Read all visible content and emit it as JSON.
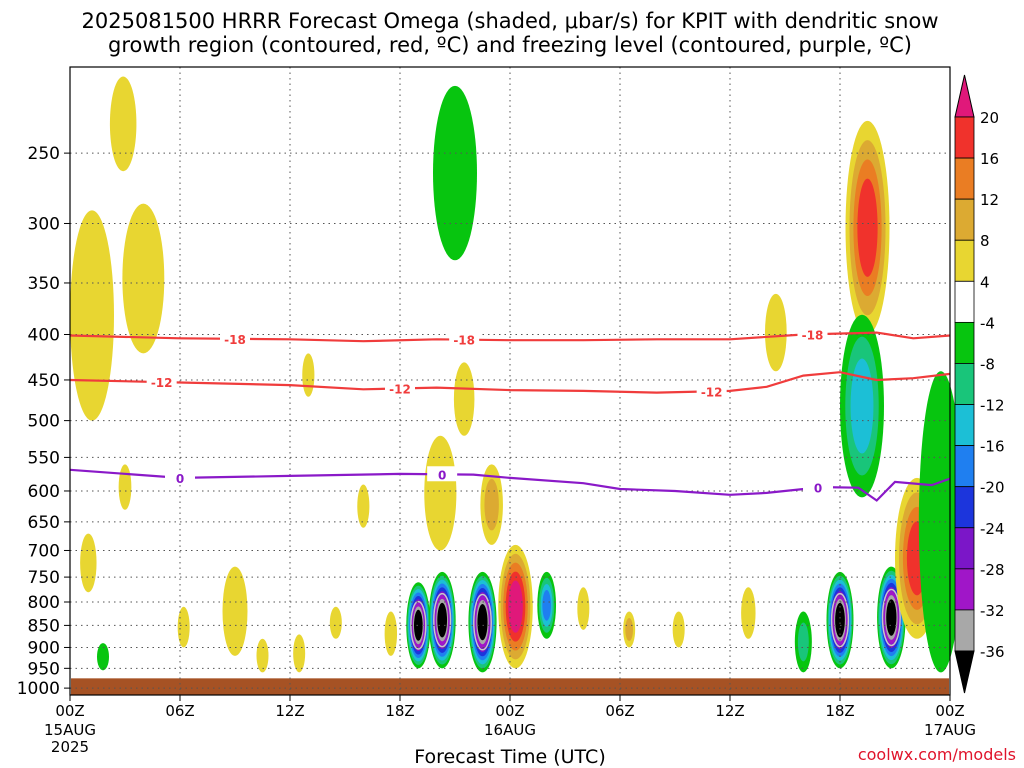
{
  "chart_data": {
    "type": "heatmap",
    "title": "2025081500 HRRR Forecast Omega (shaded, μbar/s) for KPIT with dendritic snow",
    "subtitle": "growth region (contoured, red, ºC) and freezing level (contoured, purple, ºC)",
    "xlabel": "Forecast Time (UTC)",
    "credit": "coolwx.com/models",
    "x_ticks": [
      "00Z",
      "06Z",
      "12Z",
      "18Z",
      "00Z",
      "06Z",
      "12Z",
      "18Z",
      "00Z"
    ],
    "x_hours": [
      0,
      6,
      12,
      18,
      24,
      30,
      36,
      42,
      48
    ],
    "x_date_labels": [
      {
        "hour": 0,
        "lines": [
          "15AUG",
          "2025"
        ]
      },
      {
        "hour": 24,
        "lines": [
          "16AUG"
        ]
      },
      {
        "hour": 48,
        "lines": [
          "17AUG"
        ]
      }
    ],
    "y_ticks": [
      250,
      300,
      350,
      400,
      450,
      500,
      550,
      600,
      650,
      700,
      750,
      800,
      850,
      900,
      950,
      1000
    ],
    "ylim": [
      200,
      1000
    ],
    "y_scale": "log-pressure (inverted)",
    "grid": true,
    "colorbar": {
      "levels": [
        20,
        16,
        12,
        8,
        4,
        -4,
        -8,
        -12,
        -16,
        -20,
        -24,
        -28,
        -32,
        -36
      ],
      "colors": [
        "#e0187a",
        "#f0322c",
        "#ea7d23",
        "#dcaa32",
        "#e8d631",
        "#ffffff",
        "#07c50f",
        "#19c57a",
        "#1cbfd6",
        "#1f7ff0",
        "#1c35dc",
        "#7b16c8",
        "#a016c8",
        "#a8a8a8",
        "#000000"
      ]
    },
    "contours": [
      {
        "name": "dgz_-18",
        "label": "-18",
        "color": "#f03c3c",
        "points": [
          [
            0,
            401
          ],
          [
            6,
            404
          ],
          [
            12,
            405
          ],
          [
            16,
            407
          ],
          [
            20,
            405
          ],
          [
            24,
            406
          ],
          [
            28,
            406
          ],
          [
            32,
            405
          ],
          [
            36,
            405
          ],
          [
            40,
            400
          ],
          [
            44,
            398
          ],
          [
            46,
            404
          ],
          [
            48,
            401
          ]
        ],
        "label_hours": [
          9,
          21.5,
          40.5
        ]
      },
      {
        "name": "dgz_-12",
        "label": "-12",
        "color": "#f03c3c",
        "points": [
          [
            0,
            450
          ],
          [
            6,
            453
          ],
          [
            12,
            456
          ],
          [
            16,
            461
          ],
          [
            20,
            459
          ],
          [
            24,
            462
          ],
          [
            28,
            463
          ],
          [
            32,
            465
          ],
          [
            36,
            463
          ],
          [
            38,
            458
          ],
          [
            40,
            445
          ],
          [
            42,
            441
          ],
          [
            44,
            450
          ],
          [
            46,
            448
          ],
          [
            48,
            443
          ]
        ],
        "label_hours": [
          5,
          18,
          35
        ]
      },
      {
        "name": "freezing_0",
        "label": "0",
        "color": "#8a19c8",
        "points": [
          [
            0,
            568
          ],
          [
            6,
            580
          ],
          [
            12,
            577
          ],
          [
            18,
            574
          ],
          [
            22,
            575
          ],
          [
            24,
            580
          ],
          [
            28,
            588
          ],
          [
            30,
            597
          ],
          [
            33,
            600
          ],
          [
            36,
            606
          ],
          [
            38,
            603
          ],
          [
            41,
            594
          ],
          [
            43,
            595
          ],
          [
            44,
            615
          ],
          [
            45,
            586
          ],
          [
            47,
            591
          ],
          [
            48,
            581
          ]
        ],
        "label_hours": [
          6,
          20.3,
          40.8
        ]
      }
    ],
    "regions": [
      {
        "h": 0.8,
        "p": 1000,
        "hw": 1.0,
        "pw": 0.08,
        "v": 30,
        "note": "terrain"
      }
    ],
    "omega_features": [
      {
        "hour": 2.9,
        "p_min": 205,
        "p_max": 262,
        "value": 6
      },
      {
        "hour": 1.2,
        "p_min": 290,
        "p_max": 500,
        "value": 6
      },
      {
        "hour": 4.0,
        "p_min": 285,
        "p_max": 420,
        "value": 6
      },
      {
        "hour": 3.0,
        "p_min": 560,
        "p_max": 630,
        "value": 6
      },
      {
        "hour": 1.0,
        "p_min": 670,
        "p_max": 780,
        "value": 6
      },
      {
        "hour": 1.8,
        "p_min": 890,
        "p_max": 955,
        "value": -6
      },
      {
        "hour": 6.2,
        "p_min": 810,
        "p_max": 900,
        "value": 6
      },
      {
        "hour": 9.0,
        "p_min": 730,
        "p_max": 920,
        "value": 6
      },
      {
        "hour": 10.5,
        "p_min": 880,
        "p_max": 960,
        "value": 6
      },
      {
        "hour": 13.0,
        "p_min": 420,
        "p_max": 470,
        "value": 6
      },
      {
        "hour": 12.5,
        "p_min": 870,
        "p_max": 960,
        "value": 6
      },
      {
        "hour": 14.5,
        "p_min": 810,
        "p_max": 880,
        "value": 6
      },
      {
        "hour": 16.0,
        "p_min": 590,
        "p_max": 660,
        "value": 6
      },
      {
        "hour": 17.5,
        "p_min": 820,
        "p_max": 920,
        "value": 4
      },
      {
        "hour": 19.0,
        "p_min": 760,
        "p_max": 950,
        "value": -36
      },
      {
        "hour": 20.3,
        "p_min": 740,
        "p_max": 950,
        "value": -36
      },
      {
        "hour": 20.2,
        "p_min": 520,
        "p_max": 700,
        "value": 6
      },
      {
        "hour": 21.0,
        "p_min": 210,
        "p_max": 330,
        "value": -6
      },
      {
        "hour": 21.5,
        "p_min": 430,
        "p_max": 520,
        "value": 6
      },
      {
        "hour": 23.0,
        "p_min": 560,
        "p_max": 690,
        "value": 8
      },
      {
        "hour": 22.5,
        "p_min": 740,
        "p_max": 960,
        "value": -36
      },
      {
        "hour": 24.3,
        "p_min": 690,
        "p_max": 950,
        "value": 20
      },
      {
        "hour": 26.0,
        "p_min": 740,
        "p_max": 880,
        "value": -16
      },
      {
        "hour": 28.0,
        "p_min": 770,
        "p_max": 860,
        "value": 6
      },
      {
        "hour": 30.5,
        "p_min": 820,
        "p_max": 900,
        "value": 10
      },
      {
        "hour": 33.2,
        "p_min": 820,
        "p_max": 900,
        "value": 6
      },
      {
        "hour": 37.0,
        "p_min": 770,
        "p_max": 880,
        "value": 6
      },
      {
        "hour": 38.5,
        "p_min": 360,
        "p_max": 440,
        "value": 6
      },
      {
        "hour": 40.0,
        "p_min": 820,
        "p_max": 960,
        "value": -8
      },
      {
        "hour": 42.0,
        "p_min": 740,
        "p_max": 950,
        "value": -36
      },
      {
        "hour": 43.5,
        "p_min": 230,
        "p_max": 400,
        "value": 16
      },
      {
        "hour": 43.2,
        "p_min": 380,
        "p_max": 610,
        "value": -12
      },
      {
        "hour": 44.8,
        "p_min": 730,
        "p_max": 950,
        "value": -36
      },
      {
        "hour": 46.2,
        "p_min": 580,
        "p_max": 880,
        "value": 16
      },
      {
        "hour": 47.5,
        "p_min": 440,
        "p_max": 960,
        "value": -6
      }
    ]
  }
}
